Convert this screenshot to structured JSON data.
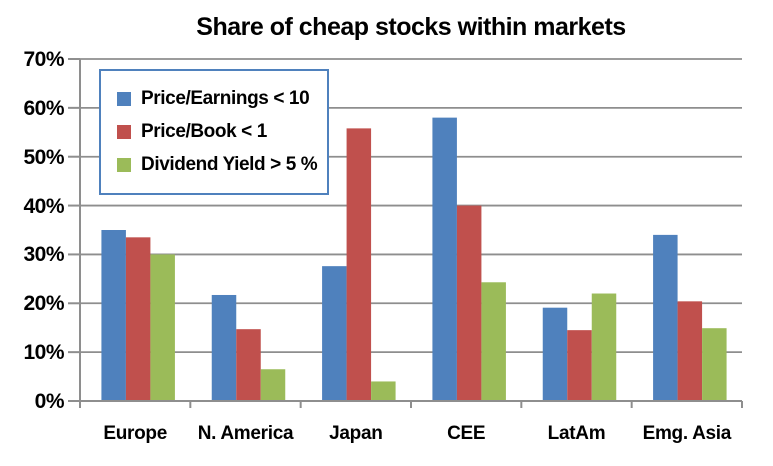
{
  "chart_data": {
    "type": "bar",
    "title": "Share of cheap stocks within markets",
    "categories": [
      "Europe",
      "N. America",
      "Japan",
      "CEE",
      "LatAm",
      "Emg. Asia"
    ],
    "series": [
      {
        "name": "Price/Earnings < 10",
        "color": "#4F81BD",
        "values": [
          35.0,
          21.7,
          27.6,
          58.0,
          19.1,
          34.0
        ]
      },
      {
        "name": "Price/Book < 1",
        "color": "#C0504D",
        "values": [
          33.5,
          14.7,
          55.8,
          40.0,
          14.5,
          20.4
        ]
      },
      {
        "name": "Dividend Yield > 5 %",
        "color": "#9BBB59",
        "values": [
          30.0,
          6.5,
          4.0,
          24.3,
          22.0,
          14.9
        ]
      }
    ],
    "ylim": [
      0,
      70
    ],
    "ytick_step": 10,
    "ytick_labels": [
      "0%",
      "10%",
      "20%",
      "30%",
      "40%",
      "50%",
      "60%",
      "70%"
    ],
    "grid": true,
    "legend_position": "top-left-inside",
    "colors": {
      "gridline": "#8e8e8e",
      "axis": "#8e8e8e",
      "legend_border": "#4F81BD",
      "text": "#000000",
      "background": "#FFFFFF"
    }
  }
}
